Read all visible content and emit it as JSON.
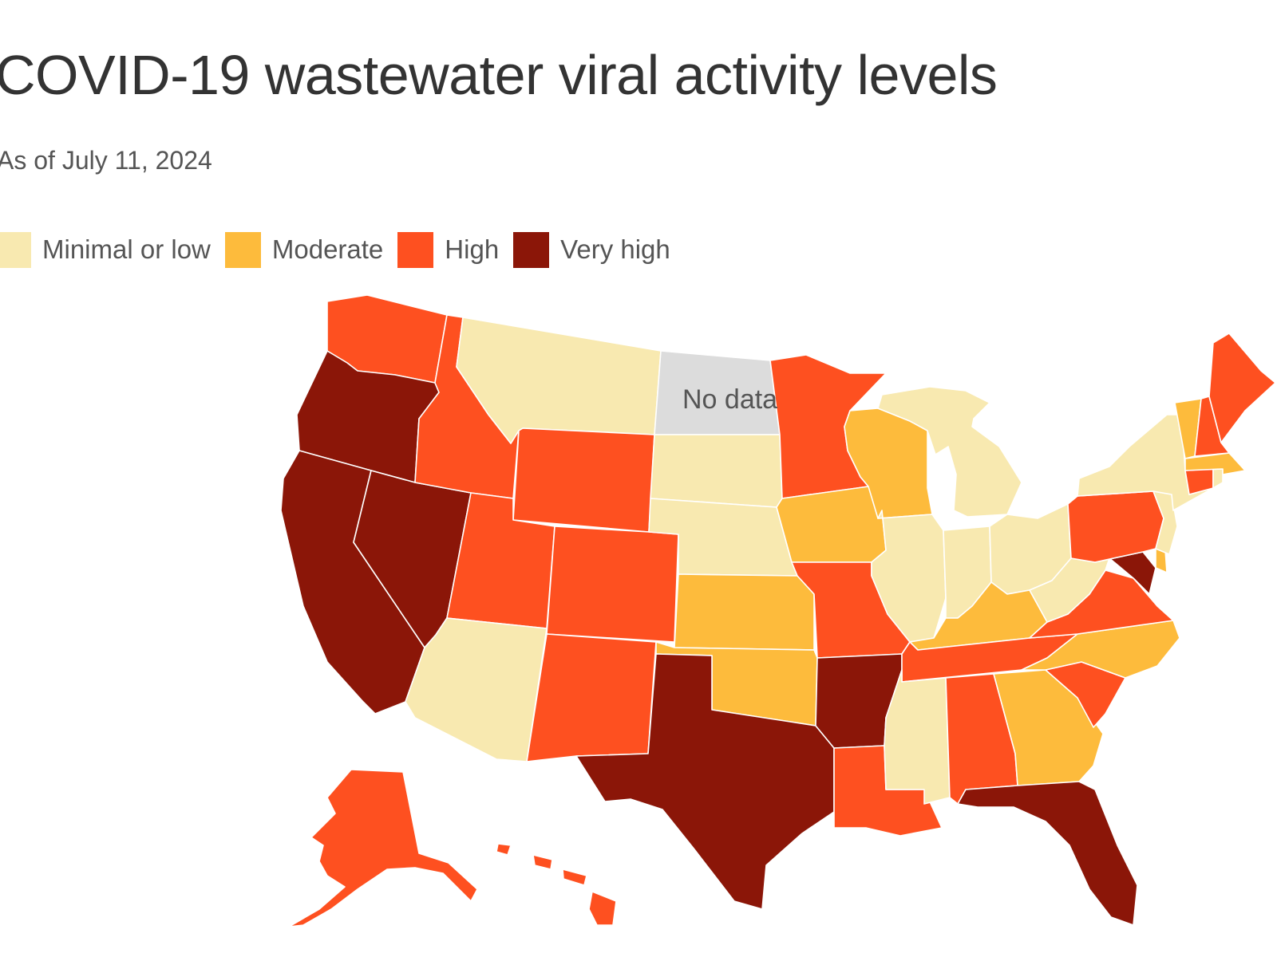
{
  "title": "COVID-19 wastewater viral activity levels",
  "subtitle": "As of July 11, 2024",
  "legend": [
    {
      "label": "Minimal or low",
      "color": "#f8e9b0"
    },
    {
      "label": "Moderate",
      "color": "#fdbb3c"
    },
    {
      "label": "High",
      "color": "#fe5020"
    },
    {
      "label": "Very high",
      "color": "#8b1608"
    }
  ],
  "no_data": {
    "label": "No data",
    "color": "#dcdcdc"
  },
  "states": {
    "WA": "High",
    "OR": "Very high",
    "CA": "Very high",
    "NV": "Very high",
    "ID": "High",
    "MT": "Minimal or low",
    "WY": "High",
    "UT": "High",
    "AZ": "Minimal or low",
    "CO": "High",
    "NM": "High",
    "ND": "No data",
    "SD": "Minimal or low",
    "NE": "Minimal or low",
    "KS": "Moderate",
    "OK": "Moderate",
    "TX": "Very high",
    "MN": "High",
    "IA": "Moderate",
    "MO": "High",
    "AR": "Very high",
    "LA": "High",
    "WI": "Moderate",
    "IL": "Minimal or low",
    "MI": "Minimal or low",
    "IN": "Minimal or low",
    "OH": "Minimal or low",
    "KY": "Moderate",
    "TN": "High",
    "MS": "Minimal or low",
    "AL": "High",
    "GA": "Moderate",
    "FL": "Very high",
    "SC": "High",
    "NC": "Moderate",
    "VA": "High",
    "WV": "Minimal or low",
    "MD": "Very high",
    "DE": "Moderate",
    "PA": "High",
    "NJ": "Minimal or low",
    "NY": "Minimal or low",
    "CT": "High",
    "RI": "Minimal or low",
    "MA": "Moderate",
    "VT": "Moderate",
    "NH": "High",
    "ME": "High",
    "AK": "High",
    "HI": "High"
  }
}
